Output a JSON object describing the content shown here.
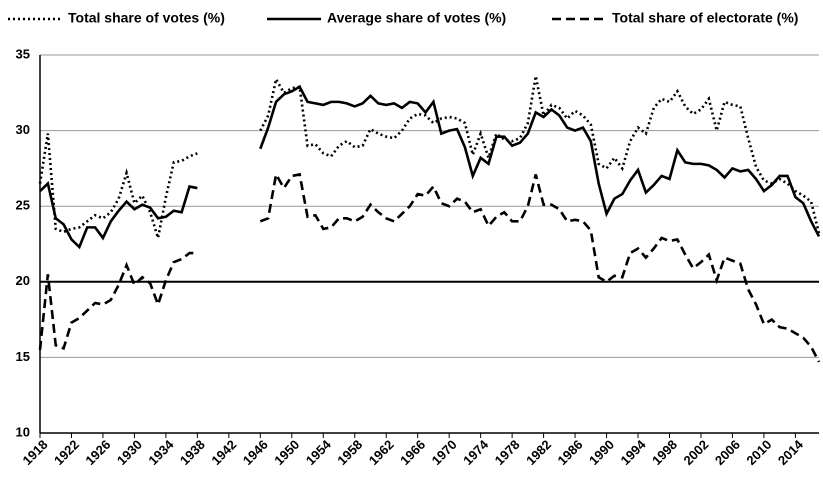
{
  "chart_data": {
    "type": "line",
    "x": [
      1918,
      1919,
      1920,
      1921,
      1922,
      1923,
      1924,
      1925,
      1926,
      1927,
      1928,
      1929,
      1930,
      1931,
      1932,
      1933,
      1934,
      1935,
      1936,
      1937,
      1938,
      1939,
      1940,
      1941,
      1942,
      1943,
      1944,
      1945,
      1946,
      1947,
      1948,
      1949,
      1950,
      1951,
      1952,
      1953,
      1954,
      1955,
      1956,
      1957,
      1958,
      1959,
      1960,
      1961,
      1962,
      1963,
      1964,
      1965,
      1966,
      1967,
      1968,
      1969,
      1970,
      1971,
      1972,
      1973,
      1974,
      1975,
      1976,
      1977,
      1978,
      1979,
      1980,
      1981,
      1982,
      1983,
      1984,
      1985,
      1986,
      1987,
      1988,
      1989,
      1990,
      1991,
      1992,
      1993,
      1994,
      1995,
      1996,
      1997,
      1998,
      1999,
      2000,
      2001,
      2002,
      2003,
      2004,
      2005,
      2006,
      2007,
      2008,
      2009,
      2010,
      2011,
      2012,
      2013,
      2014,
      2015,
      2016,
      2017
    ],
    "series": [
      {
        "name": "Total share of votes (%)",
        "color": "#000000",
        "dash": "dotted",
        "values": [
          26.5,
          29.8,
          23.5,
          23.3,
          23.5,
          23.6,
          24,
          24.4,
          24.2,
          24.6,
          25.5,
          27.2,
          25.2,
          25.7,
          24.6,
          22.9,
          25.6,
          27.9,
          28,
          28.3,
          28.5,
          null,
          null,
          null,
          null,
          null,
          null,
          null,
          30,
          31,
          33.4,
          32.5,
          32.8,
          32.9,
          29,
          29.1,
          28.5,
          28.3,
          29,
          29.3,
          28.9,
          29,
          30.1,
          29.8,
          29.6,
          29.5,
          30,
          30.8,
          31.1,
          31,
          30.5,
          30.8,
          30.9,
          30.8,
          30.5,
          28.4,
          29.8,
          28.2,
          29.8,
          29.4,
          29.3,
          29.5,
          30.5,
          33.6,
          31,
          31.7,
          31.5,
          30.8,
          31.3,
          31,
          30.4,
          27.8,
          27.5,
          28.2,
          27.5,
          29.3,
          30.2,
          29.8,
          31.5,
          32.1,
          31.9,
          32.6,
          31.6,
          31.1,
          31.4,
          32.1,
          30,
          31.9,
          31.7,
          31.6,
          29.5,
          27.6,
          26.7,
          26.5,
          26.8,
          26.5,
          26,
          25.7,
          25.3,
          23.2
        ]
      },
      {
        "name": "Average share of votes (%)",
        "color": "#000000",
        "dash": "solid",
        "values": [
          26,
          26.5,
          24.2,
          23.8,
          22.8,
          22.3,
          23.6,
          23.6,
          22.9,
          24,
          24.7,
          25.3,
          24.8,
          25.1,
          24.9,
          24.2,
          24.3,
          24.7,
          24.6,
          26.3,
          26.2,
          null,
          null,
          null,
          null,
          null,
          null,
          null,
          28.8,
          30.2,
          31.9,
          32.4,
          32.6,
          32.9,
          31.9,
          31.8,
          31.7,
          31.9,
          31.9,
          31.8,
          31.6,
          31.8,
          32.3,
          31.8,
          31.7,
          31.8,
          31.5,
          31.9,
          31.8,
          31.2,
          31.9,
          29.8,
          30,
          30.1,
          28.9,
          27,
          28.2,
          27.8,
          29.6,
          29.6,
          29,
          29.2,
          29.8,
          31.2,
          30.9,
          31.4,
          31,
          30.2,
          30,
          30.2,
          29.3,
          26.5,
          24.5,
          25.5,
          25.8,
          26.7,
          27.4,
          25.9,
          26.4,
          27,
          26.8,
          28.7,
          27.9,
          27.8,
          27.8,
          27.7,
          27.4,
          26.9,
          27.5,
          27.3,
          27.4,
          26.8,
          26,
          26.4,
          27,
          27,
          25.6,
          25.2,
          24,
          23
        ]
      },
      {
        "name": "Total share of electorate (%)",
        "color": "#000000",
        "dash": "dashed",
        "values": [
          15.5,
          20.5,
          15.8,
          15.6,
          17.3,
          17.6,
          18.1,
          18.6,
          18.5,
          18.8,
          19.8,
          21.1,
          19.8,
          20.3,
          19.9,
          18.5,
          20.1,
          21.3,
          21.5,
          21.9,
          21.9,
          null,
          null,
          null,
          null,
          null,
          null,
          null,
          24,
          24.2,
          27.1,
          26.2,
          27,
          27.1,
          24.3,
          24.4,
          23.5,
          23.6,
          24.2,
          24.2,
          24,
          24.3,
          25.1,
          24.6,
          24.2,
          24,
          24.5,
          25,
          25.8,
          25.7,
          26.3,
          25.2,
          25,
          25.5,
          25.3,
          24.6,
          24.8,
          23.7,
          24.3,
          24.6,
          24,
          24,
          25,
          27.1,
          25.1,
          25.1,
          24.8,
          24,
          24.1,
          24,
          23.4,
          20.3,
          20,
          20.4,
          20.3,
          21.9,
          22.2,
          21.6,
          22.2,
          22.9,
          22.7,
          22.8,
          21.8,
          20.9,
          21.3,
          21.8,
          20.1,
          21.6,
          21.4,
          21.2,
          19.5,
          18.5,
          17.2,
          17.5,
          17,
          16.9,
          16.6,
          16.3,
          15.7,
          14.7
        ]
      }
    ],
    "xlim": [
      1918,
      2017
    ],
    "xticks": [
      1918,
      1922,
      1926,
      1930,
      1934,
      1938,
      1942,
      1946,
      1950,
      1954,
      1958,
      1962,
      1966,
      1970,
      1974,
      1978,
      1982,
      1986,
      1990,
      1994,
      1998,
      2002,
      2006,
      2010,
      2014
    ],
    "ylim": [
      10,
      35
    ],
    "yticks": [
      10,
      15,
      20,
      25,
      30,
      35
    ],
    "grid": true,
    "reference_line": 20,
    "legend": "top"
  }
}
